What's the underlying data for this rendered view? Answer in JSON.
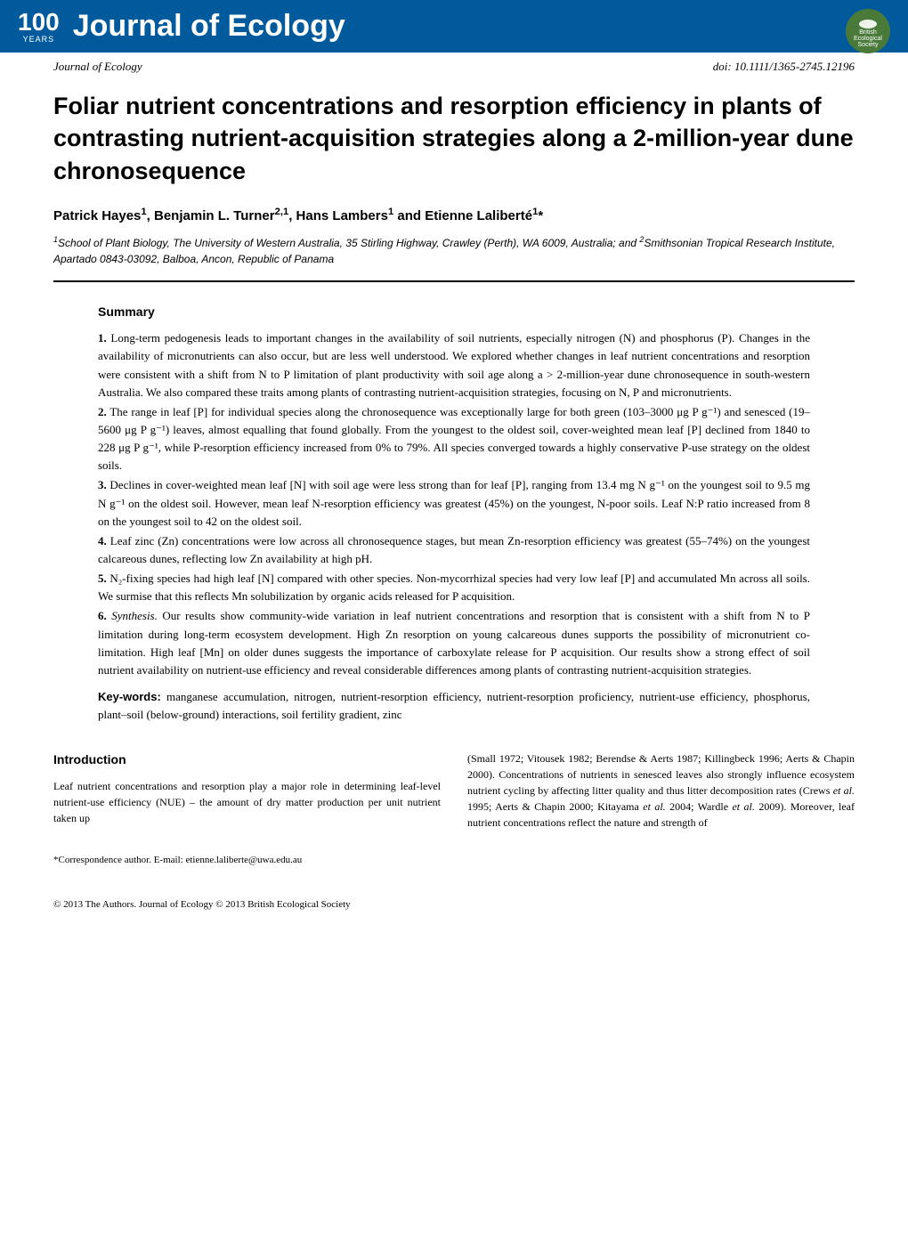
{
  "banner": {
    "years_number": "100",
    "years_label": "YEARS",
    "journal_title": "Journal of Ecology",
    "bes_text": "British Ecological Society",
    "background_color": "#005a9c",
    "text_color": "#ffffff",
    "logo_color": "#4a7a3a"
  },
  "meta": {
    "journal": "Journal of Ecology",
    "doi": "doi: 10.1111/1365-2745.12196"
  },
  "title": "Foliar nutrient concentrations and resorption efficiency in plants of contrasting nutrient-acquisition strategies along a 2-million-year dune chronosequence",
  "authors_html": "Patrick Hayes<sup>1</sup>, Benjamin L. Turner<sup>2,1</sup>, Hans Lambers<sup>1</sup> and Etienne Laliberté<sup>1</sup>*",
  "affiliations_html": "<sup>1</sup>School of Plant Biology, The University of Western Australia, 35 Stirling Highway, Crawley (Perth), WA 6009, Australia; and <sup>2</sup>Smithsonian Tropical Research Institute, Apartado 0843-03092, Balboa, Ancon, Republic of Panama",
  "summary": {
    "heading": "Summary",
    "items": [
      "Long-term pedogenesis leads to important changes in the availability of soil nutrients, especially nitrogen (N) and phosphorus (P). Changes in the availability of micronutrients can also occur, but are less well understood. We explored whether changes in leaf nutrient concentrations and resorption were consistent with a shift from N to P limitation of plant productivity with soil age along a > 2-million-year dune chronosequence in south-western Australia. We also compared these traits among plants of contrasting nutrient-acquisition strategies, focusing on N, P and micronutrients.",
      "The range in leaf [P] for individual species along the chronosequence was exceptionally large for both green (103–3000 μg P g⁻¹) and senesced (19–5600 μg P g⁻¹) leaves, almost equalling that found globally. From the youngest to the oldest soil, cover-weighted mean leaf [P] declined from 1840 to 228 μg P g⁻¹, while P-resorption efficiency increased from 0% to 79%. All species converged towards a highly conservative P-use strategy on the oldest soils.",
      "Declines in cover-weighted mean leaf [N] with soil age were less strong than for leaf [P], ranging from 13.4 mg N g⁻¹ on the youngest soil to 9.5 mg N g⁻¹ on the oldest soil. However, mean leaf N-resorption efficiency was greatest (45%) on the youngest, N-poor soils. Leaf N:P ratio increased from 8 on the youngest soil to 42 on the oldest soil.",
      "Leaf zinc (Zn) concentrations were low across all chronosequence stages, but mean Zn-resorption efficiency was greatest (55–74%) on the youngest calcareous dunes, reflecting low Zn availability at high pH.",
      "N₂-fixing species had high leaf [N] compared with other species. Non-mycorrhizal species had very low leaf [P] and accumulated Mn across all soils. We surmise that this reflects Mn solubilization by organic acids released for P acquisition.",
      "<i>Synthesis.</i> Our results show community-wide variation in leaf nutrient concentrations and resorption that is consistent with a shift from N to P limitation during long-term ecosystem development. High Zn resorption on young calcareous dunes supports the possibility of micronutrient co-limitation. High leaf [Mn] on older dunes suggests the importance of carboxylate release for P acquisition. Our results show a strong effect of soil nutrient availability on nutrient-use efficiency and reveal considerable differences among plants of contrasting nutrient-acquisition strategies."
    ]
  },
  "keywords": {
    "label": "Key-words:",
    "text": "manganese accumulation, nitrogen, nutrient-resorption efficiency, nutrient-resorption proficiency, nutrient-use efficiency, phosphorus, plant–soil (below-ground) interactions, soil fertility gradient, zinc"
  },
  "introduction": {
    "heading": "Introduction",
    "col1": "Leaf nutrient concentrations and resorption play a major role in determining leaf-level nutrient-use efficiency (NUE) – the amount of dry matter production per unit nutrient taken up",
    "col2": "(Small 1972; Vitousek 1982; Berendse & Aerts 1987; Killingbeck 1996; Aerts & Chapin 2000). Concentrations of nutrients in senesced leaves also strongly influence ecosystem nutrient cycling by affecting litter quality and thus litter decomposition rates (Crews <i>et al.</i> 1995; Aerts & Chapin 2000; Kitayama <i>et al.</i> 2004; Wardle <i>et al.</i> 2009). Moreover, leaf nutrient concentrations reflect the nature and strength of"
  },
  "correspondence": "*Correspondence author. E-mail: etienne.laliberte@uwa.edu.au",
  "copyright": "© 2013 The Authors. Journal of Ecology © 2013 British Ecological Society",
  "typography": {
    "title_fontsize": 27,
    "authors_fontsize": 15,
    "affiliations_fontsize": 12,
    "summary_fontsize": 13,
    "body_fontsize": 12,
    "sans_font": "Arial, Helvetica, sans-serif",
    "serif_font": "Georgia, Times New Roman, serif"
  },
  "colors": {
    "text": "#000000",
    "background": "#ffffff",
    "banner_bg": "#005a9c",
    "banner_text": "#ffffff",
    "divider": "#000000"
  }
}
